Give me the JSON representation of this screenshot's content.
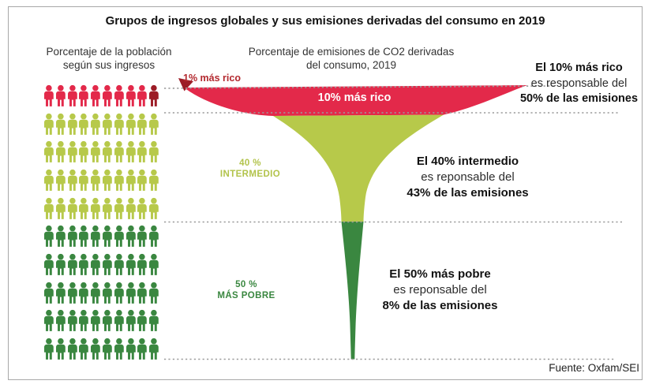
{
  "title": "Grupos de ingresos globales y sus emisiones derivadas del consumo en 2019",
  "source": "Fuente: Oxfam/SEI",
  "headers": {
    "population": {
      "line1": "Porcentaje de la población",
      "line2": "según sus ingresos"
    },
    "emissions": {
      "line1": "Porcentaje de emisiones de CO2 derivadas",
      "line2": "del consumo, 2019"
    }
  },
  "funnel_labels": {
    "top1": "1% más rico",
    "rich": "10% más rico",
    "mid_line1": "40 %",
    "mid_line2": "INTERMEDIO",
    "poor_line1": "50 %",
    "poor_line2": "MÁS POBRE"
  },
  "annotations": {
    "rich": {
      "line1": "El 10% más rico",
      "line2": "es responsable del",
      "line3": "50% de las emisiones"
    },
    "mid": {
      "line1": "El 40% intermedio",
      "line2": "es reponsable del",
      "line3": "43% de las emisiones"
    },
    "poor": {
      "line1": "El 50% más pobre",
      "line2": "es reponsable del",
      "line3": "8% de las emisiones"
    }
  },
  "chart_data": {
    "type": "pictogram-funnel",
    "title": "Grupos de ingresos globales y sus emisiones derivadas del consumo en 2019",
    "categories": [
      "10% más rico",
      "40% intermedio",
      "50% más pobre"
    ],
    "series": [
      {
        "name": "Porcentaje de la población según sus ingresos",
        "unit": "%",
        "values": [
          10,
          40,
          50
        ]
      },
      {
        "name": "Porcentaje de emisiones de CO2 derivadas del consumo, 2019",
        "unit": "%",
        "values": [
          50,
          43,
          8
        ]
      }
    ],
    "highlight": {
      "label": "1% más rico",
      "population_pct": 1
    },
    "colors": {
      "rich": "#e3294a",
      "rich_dark": "#9c1c26",
      "mid": "#b7c94a",
      "poor": "#3a8740",
      "dotted_line": "#9c9c9c",
      "label_top1": "#b3282e",
      "label_mid": "#b2c34b",
      "label_poor": "#3a8740",
      "funnel_text": "#ffffff"
    },
    "pictogram": {
      "rows": 10,
      "icons_per_row": 10,
      "total_icons": 100,
      "row_groups": [
        {
          "group": "rich",
          "rows": 1
        },
        {
          "group": "mid",
          "rows": 4
        },
        {
          "group": "poor",
          "rows": 5
        }
      ],
      "rich_dark_icon_index": 9
    }
  }
}
